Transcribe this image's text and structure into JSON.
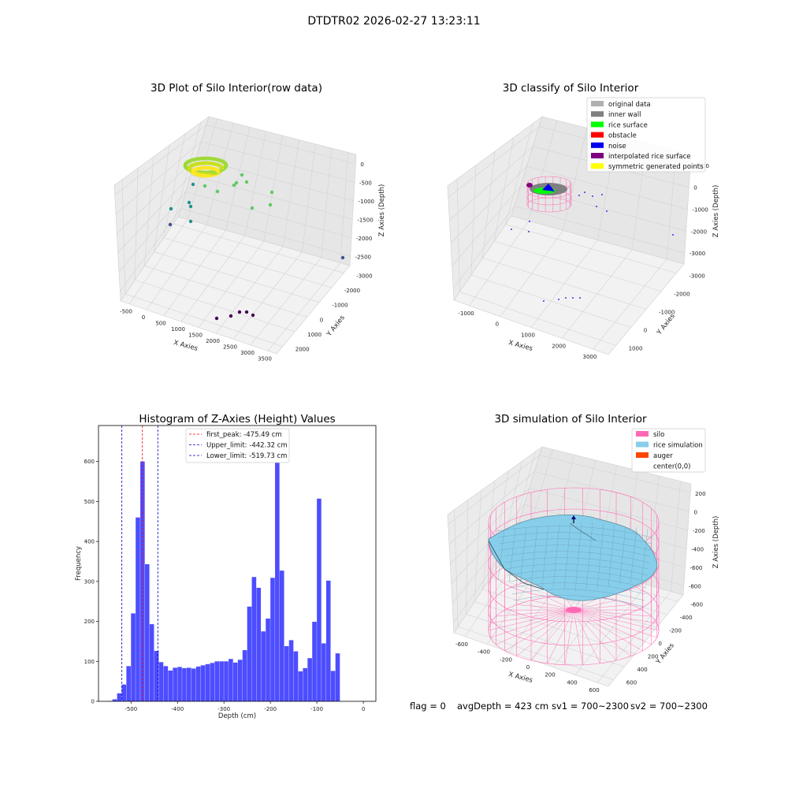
{
  "figure": {
    "suptitle": "DTDTR02 2026-02-27 13:23:11",
    "footer": {
      "flag": "flag = 0",
      "avg_depth": "avgDepth = 423 cm",
      "sv1": "sv1 = 700~2300",
      "sv2": "sv2 = 700~2300"
    }
  },
  "chart_data": [
    {
      "type": "scatter",
      "subtype": "3d",
      "title": "3D Plot of Silo Interior(row data)",
      "xlabel": "X Axies",
      "ylabel": "Y Axies",
      "zlabel": "Z Axies (Depth)",
      "x_ticks": [
        "-500",
        "0",
        "500",
        "1000",
        "1500",
        "2000",
        "2500",
        "3000",
        "3500"
      ],
      "y_ticks": [
        "-3000",
        "-2000",
        "-1000",
        "0",
        "1000",
        "2000"
      ],
      "z_ticks": [
        "0",
        "-500",
        "-1000",
        "-1500",
        "-2000",
        "-2500"
      ],
      "colormap": [
        "#440154",
        "#3b528b",
        "#21918c",
        "#5ec962",
        "#fde725"
      ]
    },
    {
      "type": "scatter",
      "subtype": "3d",
      "title": "3D classify of Silo Interior",
      "xlabel": "X Axies",
      "ylabel": "Y Axies",
      "zlabel": "Z Axies (Depth)",
      "x_ticks": [
        "-1000",
        "0",
        "1000",
        "2000",
        "3000"
      ],
      "y_ticks": [
        "-3000",
        "-2000",
        "-1000",
        "0",
        "1000"
      ],
      "z_ticks": [
        "1000",
        "0",
        "-1000",
        "-2000",
        "-3000"
      ],
      "legend_loc": "upper right",
      "legend": [
        {
          "label": "original data",
          "color": "#b0b0b0"
        },
        {
          "label": "inner wall",
          "color": "#808080"
        },
        {
          "label": "rice surface",
          "color": "#00ff00"
        },
        {
          "label": "obstacle",
          "color": "#ff0000"
        },
        {
          "label": "noise",
          "color": "#0000ee"
        },
        {
          "label": "interpolated rice surface",
          "color": "#800080"
        },
        {
          "label": "symmetric generated points",
          "color": "#ffff00"
        }
      ]
    },
    {
      "type": "bar",
      "subtype": "histogram",
      "title": "Histogram of Z-Axies (Height) Values",
      "xlabel": "Depth (cm)",
      "ylabel": "Frequency",
      "xlim": [
        -570,
        27
      ],
      "ylim": [
        0,
        690
      ],
      "x_ticks": [
        -500,
        -400,
        -300,
        -200,
        -100,
        0
      ],
      "y_ticks": [
        0,
        100,
        200,
        300,
        400,
        500,
        600
      ],
      "bar_color": "#4d4dff",
      "bin_start": -550,
      "bin_width": 10,
      "values": [
        1,
        5,
        20,
        42,
        88,
        220,
        460,
        600,
        343,
        193,
        126,
        98,
        88,
        77,
        84,
        86,
        83,
        84,
        82,
        87,
        90,
        93,
        96,
        100,
        100,
        100,
        106,
        97,
        104,
        128,
        237,
        311,
        284,
        175,
        207,
        309,
        657,
        327,
        138,
        153,
        125,
        75,
        83,
        108,
        199,
        507,
        145,
        302,
        76,
        120
      ],
      "lines": [
        {
          "label": "first_peak: -475.49 cm",
          "x": -475.49,
          "color": "#ff0000"
        },
        {
          "label": "Upper_limit: -442.32 cm",
          "x": -442.32,
          "color": "#0000cc"
        },
        {
          "label": "Lower_limit: -519.73 cm",
          "x": -519.73,
          "color": "#0000cc"
        }
      ]
    },
    {
      "type": "area",
      "subtype": "3d-surface",
      "title": "3D simulation of Silo Interior",
      "xlabel": "X Axies",
      "ylabel": "Y Axies",
      "zlabel": "Z Axies (Depth)",
      "x_ticks": [
        "-600",
        "-400",
        "-200",
        "0",
        "200",
        "400",
        "600"
      ],
      "y_ticks": [
        "-600",
        "-400",
        "-200",
        "0",
        "200",
        "400",
        "600"
      ],
      "z_ticks": [
        "200",
        "0",
        "-200",
        "-400",
        "-600",
        "-800"
      ],
      "legend_loc": "upper right",
      "legend": [
        {
          "label": "silo",
          "color": "#ff69b4"
        },
        {
          "label": "rice simulation",
          "color": "#87ceeb"
        },
        {
          "label": "auger",
          "color": "#ff4500"
        },
        {
          "label": "center(0,0)",
          "color": ""
        }
      ]
    }
  ]
}
